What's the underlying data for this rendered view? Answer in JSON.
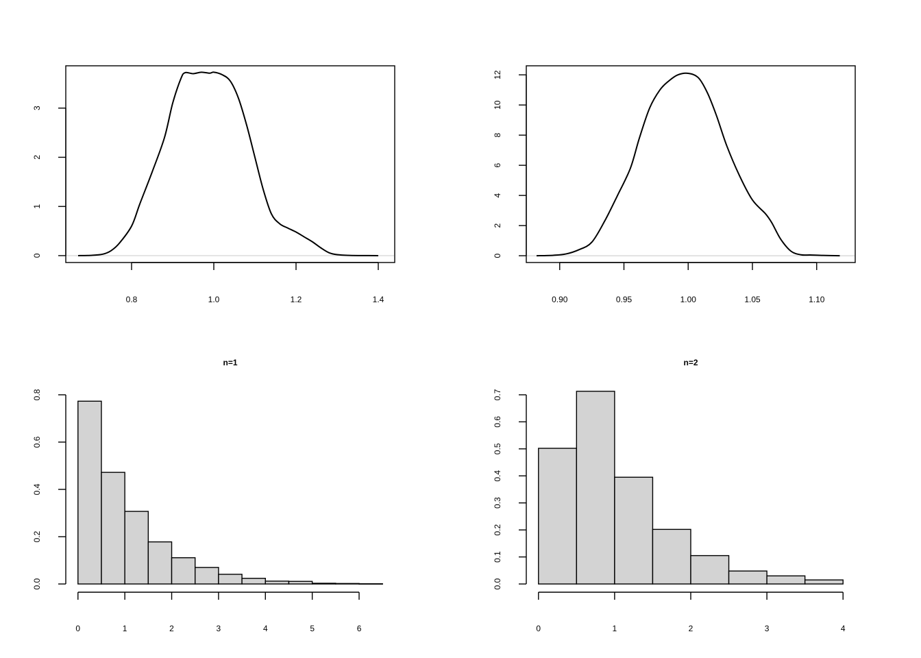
{
  "chart_data": [
    {
      "type": "line",
      "title": "",
      "xlabel": "",
      "ylabel": "",
      "xlim": [
        0.64,
        1.44
      ],
      "ylim": [
        -0.14,
        3.86
      ],
      "x_ticks": [
        0.8,
        1.0,
        1.2,
        1.4
      ],
      "x_tick_labels": [
        "0.8",
        "1.0",
        "1.2",
        "1.4"
      ],
      "y_ticks": [
        0,
        1,
        2,
        3
      ],
      "y_tick_labels": [
        "0",
        "1",
        "2",
        "3"
      ],
      "baseline": 0,
      "box": true,
      "grid": false,
      "x": [
        0.67,
        0.7,
        0.73,
        0.75,
        0.77,
        0.8,
        0.82,
        0.85,
        0.88,
        0.9,
        0.92,
        0.93,
        0.95,
        0.97,
        0.99,
        1.0,
        1.02,
        1.04,
        1.06,
        1.08,
        1.1,
        1.12,
        1.14,
        1.16,
        1.18,
        1.2,
        1.22,
        1.24,
        1.26,
        1.28,
        1.3,
        1.33,
        1.37,
        1.4
      ],
      "y": [
        0.0,
        0.005,
        0.03,
        0.1,
        0.25,
        0.6,
        1.05,
        1.7,
        2.4,
        3.1,
        3.6,
        3.72,
        3.7,
        3.73,
        3.71,
        3.73,
        3.68,
        3.55,
        3.2,
        2.65,
        2.0,
        1.35,
        0.85,
        0.65,
        0.56,
        0.48,
        0.38,
        0.28,
        0.16,
        0.06,
        0.02,
        0.005,
        0.001,
        0.0
      ]
    },
    {
      "type": "line",
      "title": "",
      "xlabel": "",
      "ylabel": "",
      "xlim": [
        0.874,
        1.13
      ],
      "ylim": [
        -0.45,
        12.6
      ],
      "x_ticks": [
        0.9,
        0.95,
        1.0,
        1.05,
        1.1
      ],
      "x_tick_labels": [
        "0.90",
        "0.95",
        "1.00",
        "1.05",
        "1.10"
      ],
      "y_ticks": [
        0,
        2,
        4,
        6,
        8,
        10,
        12
      ],
      "y_tick_labels": [
        "0",
        "2",
        "4",
        "6",
        "8",
        "10",
        "12"
      ],
      "baseline": 0,
      "box": true,
      "grid": false,
      "x": [
        0.882,
        0.895,
        0.905,
        0.915,
        0.925,
        0.935,
        0.945,
        0.955,
        0.962,
        0.97,
        0.978,
        0.985,
        0.992,
        1.0,
        1.008,
        1.015,
        1.022,
        1.03,
        1.04,
        1.05,
        1.06,
        1.065,
        1.072,
        1.08,
        1.088,
        1.095,
        1.105,
        1.118
      ],
      "y": [
        0.0,
        0.03,
        0.12,
        0.4,
        0.9,
        2.3,
        4.0,
        5.8,
        7.8,
        9.8,
        11.0,
        11.6,
        12.0,
        12.1,
        11.8,
        10.8,
        9.3,
        7.3,
        5.3,
        3.7,
        2.8,
        2.2,
        1.1,
        0.3,
        0.06,
        0.05,
        0.02,
        0.0
      ]
    },
    {
      "type": "bar",
      "title": "n=1",
      "xlabel": "",
      "ylabel": "",
      "xlim": [
        -0.26,
        6.76
      ],
      "ylim": [
        0,
        0.8
      ],
      "x_ticks": [
        0,
        1,
        2,
        3,
        4,
        5,
        6
      ],
      "x_tick_labels": [
        "0",
        "1",
        "2",
        "3",
        "4",
        "5",
        "6"
      ],
      "y_ticks": [
        0.0,
        0.2,
        0.4,
        0.6,
        0.8
      ],
      "y_tick_labels": [
        "0.0",
        "0.2",
        "0.4",
        "0.6",
        "0.8"
      ],
      "box": false,
      "grid": false,
      "bar_color": "#d3d3d3",
      "bin_edges": [
        0,
        0.5,
        1,
        1.5,
        2,
        2.5,
        3,
        3.5,
        4,
        4.5,
        5,
        5.5,
        6,
        6.5
      ],
      "values": [
        0.773,
        0.472,
        0.307,
        0.178,
        0.111,
        0.07,
        0.041,
        0.024,
        0.012,
        0.011,
        0.003,
        0.002,
        0.001
      ]
    },
    {
      "type": "bar",
      "title": "n=2",
      "xlabel": "",
      "ylabel": "",
      "xlim": [
        -0.16,
        4.16
      ],
      "ylim": [
        0,
        0.7
      ],
      "x_ticks": [
        0,
        1,
        2,
        3,
        4
      ],
      "x_tick_labels": [
        "0",
        "1",
        "2",
        "3",
        "4"
      ],
      "y_ticks": [
        0.0,
        0.1,
        0.2,
        0.3,
        0.4,
        0.5,
        0.6,
        0.7
      ],
      "y_tick_labels": [
        "0.0",
        "0.1",
        "0.2",
        "0.3",
        "0.4",
        "0.5",
        "0.6",
        "0.7"
      ],
      "box": false,
      "grid": false,
      "bar_color": "#d3d3d3",
      "bin_edges": [
        0,
        0.5,
        1,
        1.5,
        2,
        2.5,
        3,
        3.5,
        4
      ],
      "values": [
        0.502,
        0.713,
        0.395,
        0.202,
        0.105,
        0.048,
        0.03,
        0.015
      ]
    }
  ]
}
